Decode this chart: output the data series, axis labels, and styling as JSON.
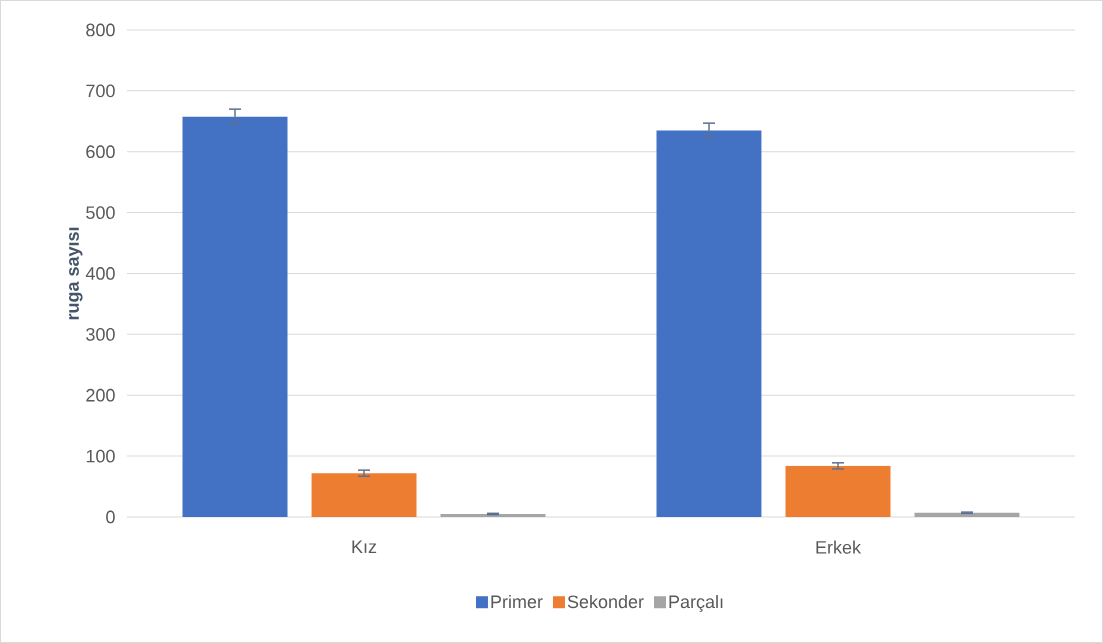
{
  "chart_data": {
    "type": "bar",
    "ylabel": "ruga sayısı",
    "categories": [
      "Kız",
      "Erkek"
    ],
    "series": [
      {
        "name": "Primer",
        "color": "#4372c4",
        "values": [
          658,
          635
        ],
        "errors": [
          12,
          12
        ]
      },
      {
        "name": "Sekonder",
        "color": "#ed7d31",
        "values": [
          72,
          84
        ],
        "errors": [
          5,
          5
        ]
      },
      {
        "name": "Parçalı",
        "color": "#a5a5a5",
        "values": [
          5,
          7
        ],
        "errors": [
          1,
          1
        ]
      }
    ],
    "ylim": [
      0,
      800
    ],
    "yticks": [
      0,
      100,
      200,
      300,
      400,
      500,
      600,
      700,
      800
    ],
    "grid": "y",
    "legend": "bottom"
  }
}
